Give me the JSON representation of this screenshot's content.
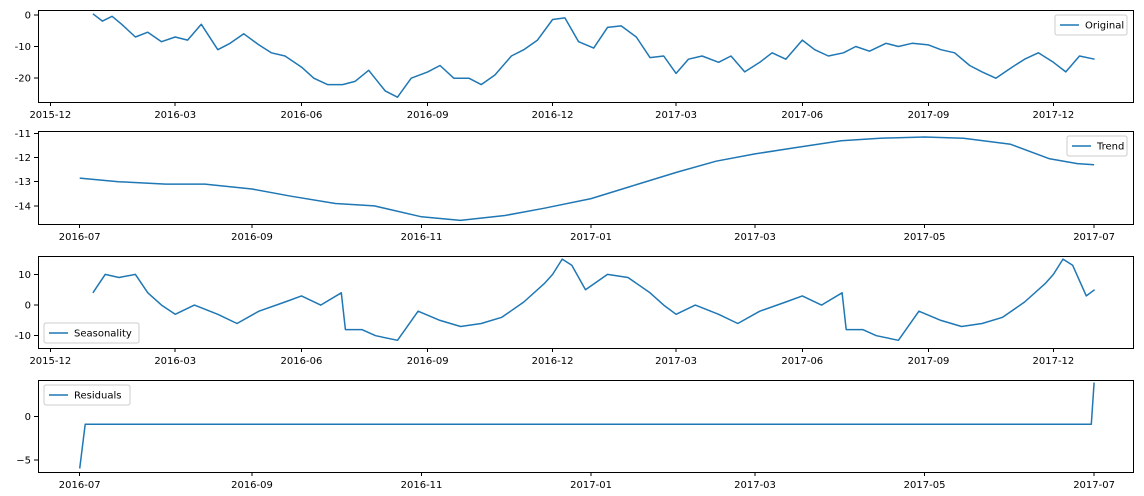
{
  "colors": {
    "series": "#1f77b4",
    "axis": "#000000",
    "background": "#ffffff"
  },
  "chart_data": [
    {
      "type": "line",
      "panel": "original",
      "title": "",
      "xlabel": "",
      "ylabel": "",
      "grid": false,
      "legend": {
        "placement": "upper-right",
        "entries": [
          "Original"
        ]
      },
      "xlim": [
        "2015-11-22",
        "2018-01-28"
      ],
      "ylim": [
        -27.5,
        1.5
      ],
      "x_ticks": [
        "2015-12",
        "2016-03",
        "2016-06",
        "2016-09",
        "2016-12",
        "2017-03",
        "2017-06",
        "2017-09",
        "2017-12"
      ],
      "y_ticks": [
        0,
        -10,
        -20
      ],
      "series": [
        {
          "name": "Original",
          "points": [
            [
              "2016-01-01",
              0.3
            ],
            [
              "2016-01-08",
              -2.0
            ],
            [
              "2016-01-15",
              -0.5
            ],
            [
              "2016-01-22",
              -3.0
            ],
            [
              "2016-02-01",
              -7.0
            ],
            [
              "2016-02-10",
              -5.5
            ],
            [
              "2016-02-20",
              -8.5
            ],
            [
              "2016-03-01",
              -7.0
            ],
            [
              "2016-03-10",
              -8.0
            ],
            [
              "2016-03-20",
              -3.0
            ],
            [
              "2016-04-01",
              -11.0
            ],
            [
              "2016-04-10",
              -9.0
            ],
            [
              "2016-04-20",
              -6.0
            ],
            [
              "2016-05-01",
              -9.5
            ],
            [
              "2016-05-10",
              -12.0
            ],
            [
              "2016-05-20",
              -13.0
            ],
            [
              "2016-06-01",
              -16.5
            ],
            [
              "2016-06-10",
              -20.0
            ],
            [
              "2016-06-20",
              -22.0
            ],
            [
              "2016-07-01",
              -22.0
            ],
            [
              "2016-07-10",
              -21.0
            ],
            [
              "2016-07-20",
              -17.5
            ],
            [
              "2016-08-01",
              -24.0
            ],
            [
              "2016-08-10",
              -26.0
            ],
            [
              "2016-08-20",
              -20.0
            ],
            [
              "2016-09-01",
              -18.0
            ],
            [
              "2016-09-10",
              -16.0
            ],
            [
              "2016-09-20",
              -20.0
            ],
            [
              "2016-10-01",
              -20.0
            ],
            [
              "2016-10-10",
              -22.0
            ],
            [
              "2016-10-20",
              -19.0
            ],
            [
              "2016-11-01",
              -13.0
            ],
            [
              "2016-11-10",
              -11.0
            ],
            [
              "2016-11-20",
              -8.0
            ],
            [
              "2016-12-01",
              -1.5
            ],
            [
              "2016-12-10",
              -1.0
            ],
            [
              "2016-12-20",
              -8.5
            ],
            [
              "2016-12-31",
              -10.5
            ],
            [
              "2017-01-10",
              -4.0
            ],
            [
              "2017-01-20",
              -3.5
            ],
            [
              "2017-01-31",
              -7.0
            ],
            [
              "2017-02-10",
              -13.5
            ],
            [
              "2017-02-20",
              -13.0
            ],
            [
              "2017-03-01",
              -18.5
            ],
            [
              "2017-03-10",
              -14.0
            ],
            [
              "2017-03-20",
              -13.0
            ],
            [
              "2017-04-01",
              -15.0
            ],
            [
              "2017-04-10",
              -13.0
            ],
            [
              "2017-04-20",
              -18.0
            ],
            [
              "2017-05-01",
              -15.0
            ],
            [
              "2017-05-10",
              -12.0
            ],
            [
              "2017-05-20",
              -14.0
            ],
            [
              "2017-06-01",
              -8.0
            ],
            [
              "2017-06-10",
              -11.0
            ],
            [
              "2017-06-20",
              -13.0
            ],
            [
              "2017-07-01",
              -12.0
            ],
            [
              "2017-07-10",
              -10.0
            ],
            [
              "2017-07-20",
              -11.5
            ],
            [
              "2017-08-01",
              -9.0
            ],
            [
              "2017-08-10",
              -10.0
            ],
            [
              "2017-08-20",
              -9.0
            ],
            [
              "2017-09-01",
              -9.5
            ],
            [
              "2017-09-10",
              -11.0
            ],
            [
              "2017-09-20",
              -12.0
            ],
            [
              "2017-10-01",
              -16.0
            ],
            [
              "2017-10-10",
              -18.0
            ],
            [
              "2017-10-20",
              -20.0
            ],
            [
              "2017-11-01",
              -16.5
            ],
            [
              "2017-11-10",
              -14.0
            ],
            [
              "2017-11-20",
              -12.0
            ],
            [
              "2017-12-01",
              -15.0
            ],
            [
              "2017-12-10",
              -18.0
            ],
            [
              "2017-12-20",
              -13.0
            ],
            [
              "2017-12-31",
              -14.0
            ]
          ]
        }
      ]
    },
    {
      "type": "line",
      "panel": "trend",
      "title": "",
      "xlabel": "",
      "ylabel": "",
      "grid": false,
      "legend": {
        "placement": "upper-right",
        "entries": [
          "Trend"
        ]
      },
      "xlim": [
        "2016-06-16",
        "2017-07-15"
      ],
      "ylim": [
        -14.75,
        -10.9
      ],
      "x_ticks": [
        "2016-07",
        "2016-09",
        "2016-11",
        "2017-01",
        "2017-03",
        "2017-05",
        "2017-07"
      ],
      "y_ticks": [
        -11,
        -12,
        -13,
        -14
      ],
      "series": [
        {
          "name": "Trend",
          "points": [
            [
              "2016-07-01",
              -12.85
            ],
            [
              "2016-07-15",
              -13.0
            ],
            [
              "2016-08-01",
              -13.1
            ],
            [
              "2016-08-15",
              -13.1
            ],
            [
              "2016-09-01",
              -13.3
            ],
            [
              "2016-09-15",
              -13.6
            ],
            [
              "2016-10-01",
              -13.9
            ],
            [
              "2016-10-15",
              -14.0
            ],
            [
              "2016-11-01",
              -14.45
            ],
            [
              "2016-11-15",
              -14.6
            ],
            [
              "2016-12-01",
              -14.4
            ],
            [
              "2016-12-15",
              -14.1
            ],
            [
              "2017-01-01",
              -13.7
            ],
            [
              "2017-01-15",
              -13.2
            ],
            [
              "2017-02-01",
              -12.6
            ],
            [
              "2017-02-15",
              -12.15
            ],
            [
              "2017-03-01",
              -11.85
            ],
            [
              "2017-03-15",
              -11.6
            ],
            [
              "2017-04-01",
              -11.3
            ],
            [
              "2017-04-15",
              -11.2
            ],
            [
              "2017-05-01",
              -11.15
            ],
            [
              "2017-05-15",
              -11.2
            ],
            [
              "2017-06-01",
              -11.45
            ],
            [
              "2017-06-15",
              -12.05
            ],
            [
              "2017-06-25",
              -12.25
            ],
            [
              "2017-07-01",
              -12.3
            ]
          ]
        }
      ]
    },
    {
      "type": "line",
      "panel": "seasonality",
      "title": "",
      "xlabel": "",
      "ylabel": "",
      "grid": false,
      "legend": {
        "placement": "lower-left",
        "entries": [
          "Seasonality"
        ]
      },
      "xlim": [
        "2015-11-22",
        "2018-01-28"
      ],
      "ylim": [
        -14,
        16
      ],
      "x_ticks": [
        "2015-12",
        "2016-03",
        "2016-06",
        "2016-09",
        "2016-12",
        "2017-03",
        "2017-06",
        "2017-09",
        "2017-12"
      ],
      "y_ticks": [
        10,
        0,
        -10
      ],
      "series": [
        {
          "name": "Seasonality",
          "points": [
            [
              "2016-01-01",
              4.0
            ],
            [
              "2016-01-10",
              10.0
            ],
            [
              "2016-01-20",
              9.0
            ],
            [
              "2016-02-01",
              10.0
            ],
            [
              "2016-02-10",
              4.0
            ],
            [
              "2016-02-20",
              0.0
            ],
            [
              "2016-03-01",
              -3.0
            ],
            [
              "2016-03-15",
              0.0
            ],
            [
              "2016-04-01",
              -3.0
            ],
            [
              "2016-04-15",
              -6.0
            ],
            [
              "2016-05-01",
              -2.0
            ],
            [
              "2016-05-20",
              1.0
            ],
            [
              "2016-06-01",
              3.0
            ],
            [
              "2016-06-15",
              0.0
            ],
            [
              "2016-06-30",
              4.0
            ],
            [
              "2016-07-03",
              -8.0
            ],
            [
              "2016-07-15",
              -8.0
            ],
            [
              "2016-07-25",
              -10.0
            ],
            [
              "2016-08-10",
              -11.5
            ],
            [
              "2016-08-25",
              -2.0
            ],
            [
              "2016-09-10",
              -5.0
            ],
            [
              "2016-09-25",
              -7.0
            ],
            [
              "2016-10-10",
              -6.0
            ],
            [
              "2016-10-25",
              -4.0
            ],
            [
              "2016-11-10",
              1.0
            ],
            [
              "2016-11-25",
              7.0
            ],
            [
              "2016-12-01",
              10.0
            ],
            [
              "2016-12-08",
              15.0
            ],
            [
              "2016-12-15",
              13.0
            ],
            [
              "2016-12-25",
              5.0
            ],
            [
              "2017-01-10",
              10.0
            ],
            [
              "2017-01-25",
              9.0
            ],
            [
              "2017-02-10",
              4.0
            ],
            [
              "2017-02-20",
              0.0
            ],
            [
              "2017-03-01",
              -3.0
            ],
            [
              "2017-03-15",
              0.0
            ],
            [
              "2017-04-01",
              -3.0
            ],
            [
              "2017-04-15",
              -6.0
            ],
            [
              "2017-05-01",
              -2.0
            ],
            [
              "2017-05-20",
              1.0
            ],
            [
              "2017-06-01",
              3.0
            ],
            [
              "2017-06-15",
              0.0
            ],
            [
              "2017-06-30",
              4.0
            ],
            [
              "2017-07-03",
              -8.0
            ],
            [
              "2017-07-15",
              -8.0
            ],
            [
              "2017-07-25",
              -10.0
            ],
            [
              "2017-08-10",
              -11.5
            ],
            [
              "2017-08-25",
              -2.0
            ],
            [
              "2017-09-10",
              -5.0
            ],
            [
              "2017-09-25",
              -7.0
            ],
            [
              "2017-10-10",
              -6.0
            ],
            [
              "2017-10-25",
              -4.0
            ],
            [
              "2017-11-10",
              1.0
            ],
            [
              "2017-11-25",
              7.0
            ],
            [
              "2017-12-01",
              10.0
            ],
            [
              "2017-12-08",
              15.0
            ],
            [
              "2017-12-15",
              13.0
            ],
            [
              "2017-12-25",
              3.0
            ],
            [
              "2017-12-31",
              5.0
            ]
          ]
        }
      ]
    },
    {
      "type": "line",
      "panel": "residuals",
      "title": "",
      "xlabel": "",
      "ylabel": "",
      "grid": false,
      "legend": {
        "placement": "upper-left",
        "entries": [
          "Residuals"
        ]
      },
      "xlim": [
        "2016-06-16",
        "2017-07-15"
      ],
      "ylim": [
        -6.4,
        4.2
      ],
      "x_ticks": [
        "2016-07",
        "2016-09",
        "2016-11",
        "2017-01",
        "2017-03",
        "2017-05",
        "2017-07"
      ],
      "y_ticks": [
        0,
        -5
      ],
      "y_tick_labels": [
        "0",
        "−5"
      ],
      "series": [
        {
          "name": "Residuals",
          "points": [
            [
              "2016-07-01",
              -6.0
            ],
            [
              "2016-07-03",
              -0.9
            ],
            [
              "2017-06-30",
              -0.9
            ],
            [
              "2017-07-01",
              3.9
            ]
          ]
        }
      ]
    }
  ]
}
